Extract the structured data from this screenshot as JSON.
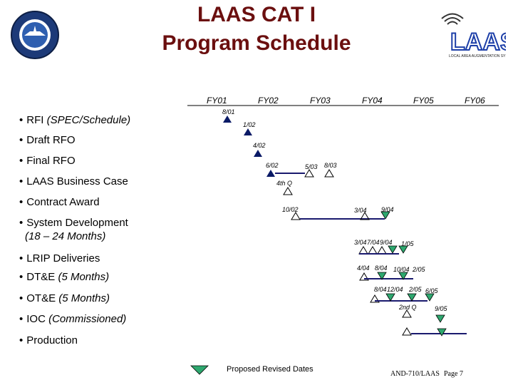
{
  "title_line1": "LAAS CAT I",
  "title_line2": "Program Schedule",
  "logo_left_text": "FEDERAL AVIATION ADMINISTRATION",
  "logo_right_text": "LAAS",
  "logo_right_sub": "LOCAL AREA AUGMENTATION SYSTEM",
  "fiscal_years": [
    "FY01",
    "FY02",
    "FY03",
    "FY04",
    "FY05",
    "FY06"
  ],
  "tasks": [
    {
      "text": "RFI",
      "note": "(SPEC/Schedule)"
    },
    {
      "text": "Draft RFO",
      "note": ""
    },
    {
      "text": "Final RFO",
      "note": ""
    },
    {
      "text": "LAAS Business Case",
      "note": ""
    },
    {
      "text": "Contract Award",
      "note": ""
    },
    {
      "text": "System Development",
      "note": ""
    },
    {
      "text": "LRIP Deliveries",
      "note": ""
    },
    {
      "text": "DT&E",
      "note": "(5 Months)"
    },
    {
      "text": "OT&E",
      "note": "(5 Months)"
    },
    {
      "text": "IOC",
      "note": "(Commissioned)"
    },
    {
      "text": "Production",
      "note": ""
    }
  ],
  "system_dev_subtext": "(18 – 24 Months)",
  "milestone_labels": {
    "rfi": "8/01",
    "draft_rfo": "1/02",
    "final_rfo": "4/02",
    "bc_a": "6/02",
    "bc_b": "5/03",
    "bc_c": "8/03",
    "award": "4th Q",
    "sd_a": "10/02",
    "sd_b": "3/04",
    "sd_c": "9/04",
    "lrip": "3/04 7/04 9/04",
    "lrip_b": "1/05",
    "dte": "4/04",
    "dte_b": "8/04",
    "dte_c": "10/04",
    "dte_d": "2/05",
    "ote": "8/04 12/04",
    "ote_b": "2/05",
    "ote_c": "6/05",
    "ioc": "2nd Q",
    "ioc_b": "9/05"
  },
  "legend_label": "Proposed Revised Dates",
  "footer": "AND-710/LAAS",
  "page_label": "Page 7",
  "colors": {
    "title": "#6b0f0f",
    "milestone_fill": "#0a1a66",
    "revised_fill": "#2ea86f",
    "bar": "#1a1a6e"
  }
}
